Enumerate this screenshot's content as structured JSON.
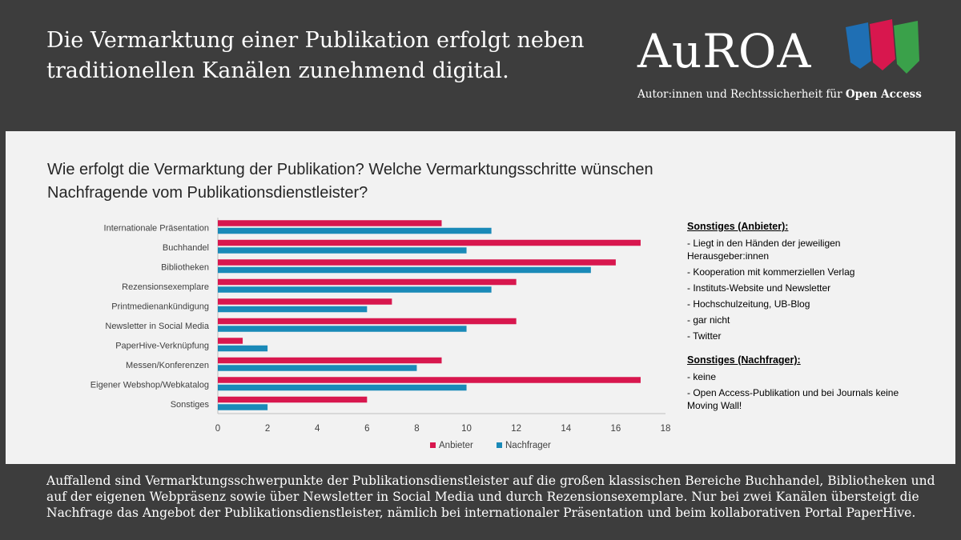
{
  "headline": "Die Vermarktung einer Publikation erfolgt neben traditionellen Kanälen zunehmend digital.",
  "logo": {
    "wordmark": "AuROA",
    "tagline_prefix": "Autor:innen und Rechtssicherheit für",
    "tagline_bold": "Open Access",
    "colors": [
      "#1f6fb4",
      "#d8174e",
      "#3aa14a"
    ]
  },
  "chart_data": {
    "type": "bar",
    "orientation": "horizontal",
    "title": "Wie erfolgt die Vermarktung der Publikation? Welche Vermarktungsschritte wünschen Nachfragende vom Publikationsdienstleister?",
    "categories": [
      "Internationale Präsentation",
      "Buchhandel",
      "Bibliotheken",
      "Rezensionsexemplare",
      "Printmedienankündigung",
      "Newsletter in Social Media",
      "PaperHive-Verknüpfung",
      "Messen/Konferenzen",
      "Eigener Webshop/Webkatalog",
      "Sonstiges"
    ],
    "series": [
      {
        "name": "Anbieter",
        "color": "#d8174e",
        "values": [
          9,
          17,
          16,
          12,
          7,
          12,
          1,
          9,
          17,
          6
        ]
      },
      {
        "name": "Nachfrager",
        "color": "#1a8ab8",
        "values": [
          11,
          10,
          15,
          11,
          6,
          10,
          2,
          8,
          10,
          2
        ]
      }
    ],
    "xlim": [
      0,
      18
    ],
    "xticks": [
      "0",
      "2",
      "4",
      "6",
      "8",
      "10",
      "12",
      "14",
      "16",
      "18"
    ],
    "grid": false,
    "legend": "bottom"
  },
  "notes": {
    "anbieter_heading": "Sonstiges (Anbieter):",
    "anbieter_items": [
      "- Liegt in den Händen der jeweiligen Herausgeber:innen",
      "- Kooperation mit kommerziellen Verlag",
      "- Instituts-Website und Newsletter",
      "- Hochschulzeitung, UB-Blog",
      "- gar nicht",
      "- Twitter"
    ],
    "nachfrager_heading": "Sonstiges (Nachfrager):",
    "nachfrager_items": [
      "- keine",
      "- Open Access-Publikation und bei Journals keine Moving Wall!"
    ]
  },
  "footer": "Auffallend sind Vermarktungsschwerpunkte der Publikationsdienstleister auf die großen klassischen Bereiche Buchhandel, Bibliotheken und auf der eigenen Webpräsenz sowie über Newsletter in Social Media und durch Rezensionsexemplare. Nur bei zwei Kanälen übersteigt die Nachfrage das Angebot der Publikationsdienstleister, nämlich bei internationaler Präsentation und beim kollaborativen Portal PaperHive."
}
